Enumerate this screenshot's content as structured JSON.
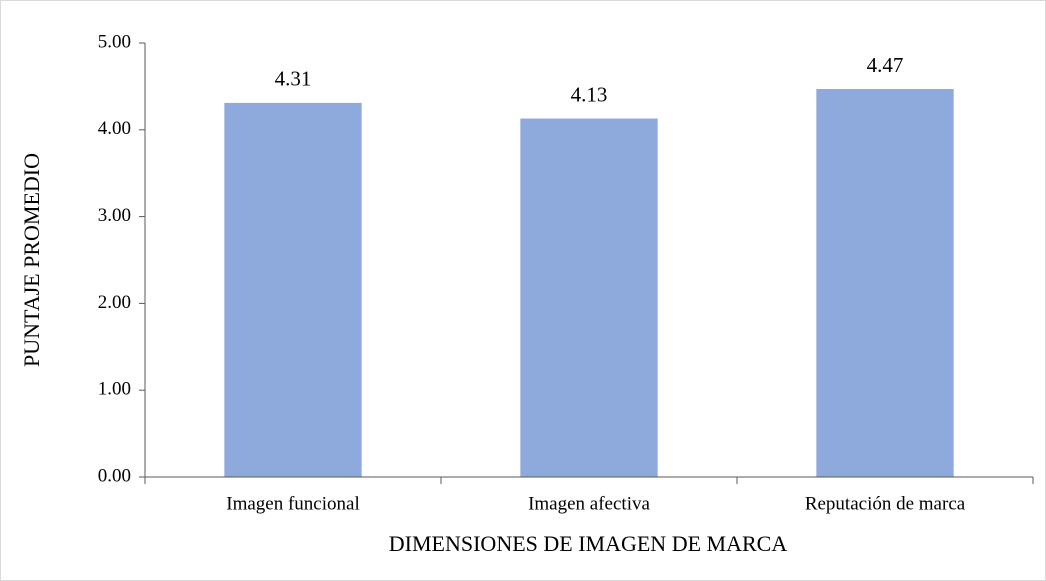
{
  "chart_data": {
    "type": "bar",
    "categories": [
      "Imagen funcional",
      "Imagen afectiva",
      "Reputación de marca"
    ],
    "values": [
      4.31,
      4.13,
      4.47
    ],
    "color": "#8eaadc",
    "x_label": "DIMENSIONES DE IMAGEN DE MARCA",
    "y_label": "PUNTAJE PROMEDIO",
    "ylim": [
      0,
      5
    ],
    "yticks": [
      {
        "value": 0,
        "label": "0.00"
      },
      {
        "value": 1,
        "label": "1.00"
      },
      {
        "value": 2,
        "label": "2.00"
      },
      {
        "value": 3,
        "label": "3.00"
      },
      {
        "value": 4,
        "label": "4.00"
      },
      {
        "value": 5,
        "label": "5.00"
      }
    ],
    "grid": false
  }
}
